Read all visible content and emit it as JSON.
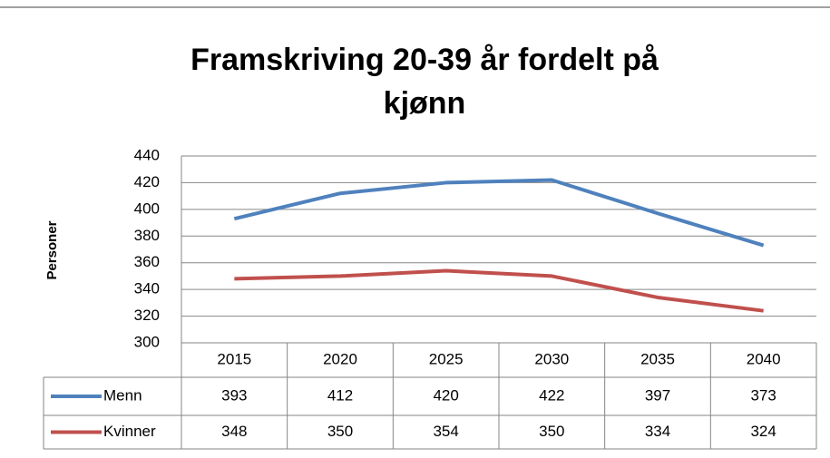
{
  "chart_data": {
    "type": "line",
    "title": [
      "Framskriving 20-39 år fordelt på",
      "kjønn"
    ],
    "y_label": "Personer",
    "categories": [
      "2015",
      "2020",
      "2025",
      "2030",
      "2035",
      "2040"
    ],
    "series": [
      {
        "name": "Menn",
        "color": "#4f81bd",
        "values": [
          393,
          412,
          420,
          422,
          397,
          373
        ]
      },
      {
        "name": "Kvinner",
        "color": "#c0504d",
        "values": [
          348,
          350,
          354,
          350,
          334,
          324
        ]
      }
    ],
    "ylim": [
      300,
      440
    ],
    "yticks": [
      300,
      320,
      340,
      360,
      380,
      400,
      420,
      440
    ],
    "grid": true,
    "data_table": true
  }
}
